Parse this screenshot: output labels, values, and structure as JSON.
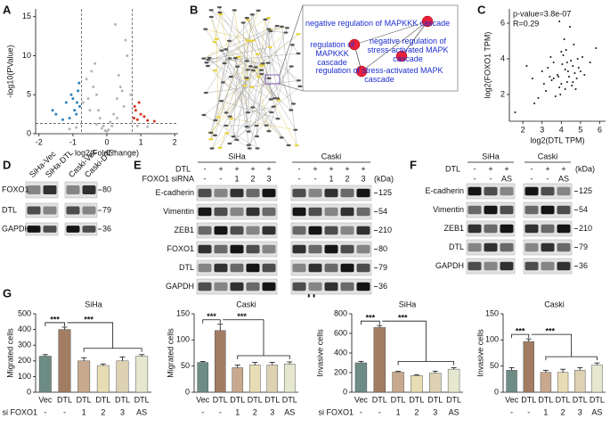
{
  "panel_labels": [
    "A",
    "B",
    "C",
    "D",
    "E",
    "F",
    "G",
    "H"
  ],
  "chart_data": [
    {
      "type": "scatter",
      "xlabel": "log2(FoldChange)",
      "ylabel": "-log10(PValue)",
      "xlim": [
        -2.1,
        2.1
      ],
      "ylim": [
        0,
        16
      ],
      "xticks": [
        -2,
        -1,
        0,
        1,
        2
      ],
      "yticks": [
        0,
        5,
        10,
        15
      ],
      "vlines": [
        -0.75,
        0.75
      ],
      "hline": 1.3,
      "series": [
        {
          "color": "#b5b5b5",
          "x": [
            -0.9,
            -0.7,
            -0.5,
            -0.4,
            -0.3,
            -0.2,
            -0.1,
            0,
            0.1,
            0.2,
            0.3,
            0.4,
            0.5,
            -0.6,
            0.6,
            -0.3,
            0.3,
            -0.45,
            0.45,
            -0.15,
            0.15,
            0.05,
            -0.05,
            0.7,
            0.9,
            0.25,
            -0.25,
            -1.1,
            1.2,
            -0.35,
            0.35,
            0.55,
            -0.55
          ],
          "values": [
            0.8,
            4,
            3,
            6,
            5,
            2,
            1,
            0.3,
            1.5,
            2.5,
            4.5,
            6,
            3.5,
            7,
            10,
            1.2,
            2,
            8,
            5.5,
            0.7,
            1,
            0.5,
            0.4,
            5,
            1,
            14,
            3,
            0.6,
            0.9,
            9,
            7.5,
            12,
            4.5
          ]
        },
        {
          "color": "#2c7fb8",
          "x": [
            -1.5,
            -1.2,
            -1.0,
            -0.95,
            -0.85,
            -0.8,
            -1.1,
            -0.82,
            -0.9,
            -1.3,
            -0.88,
            -1.6,
            -1.05
          ],
          "values": [
            2.5,
            4,
            4.5,
            3,
            5.5,
            3.5,
            2,
            6.5,
            2.5,
            1.8,
            4,
            3,
            5
          ]
        },
        {
          "color": "#d7301f",
          "x": [
            0.8,
            0.85,
            0.9,
            1.0,
            1.2,
            0.82,
            0.95,
            1.1,
            1.4
          ],
          "values": [
            2,
            3,
            1.8,
            2.5,
            1.7,
            3.5,
            4,
            2.2,
            1.6
          ]
        }
      ]
    },
    {
      "type": "scatter",
      "xlabel": "log2(DTL TPM)",
      "ylabel": "log2(FOXO1 TPM)",
      "annotations": [
        "p-value=3.8e-07",
        "R=0.29"
      ],
      "xlim": [
        1.3,
        6.3
      ],
      "ylim": [
        0.5,
        6.8
      ],
      "xticks": [
        2,
        3,
        4,
        5,
        6
      ],
      "yticks": [
        2,
        4,
        6
      ],
      "series": [
        {
          "color": "#111111",
          "x": [
            3.2,
            3.5,
            3.8,
            4.0,
            4.2,
            4.4,
            4.6,
            4.8,
            5.0,
            3.6,
            3.9,
            4.1,
            4.3,
            4.5,
            4.7,
            3.3,
            3.7,
            4.05,
            4.25,
            4.55,
            4.85,
            5.2,
            2.8,
            3.0,
            2.5,
            2.2,
            5.5,
            5.8,
            4.15,
            3.95,
            4.35,
            4.65,
            3.45,
            3.85,
            4.75,
            4.9,
            3.1,
            2.6,
            1.6,
            4.45,
            3.9,
            4.0,
            4.3,
            3.6,
            4.6,
            5.1,
            3.4,
            4.2
          ],
          "values": [
            2.2,
            2.8,
            3.1,
            2.6,
            3.4,
            3.0,
            3.6,
            2.9,
            3.3,
            3.8,
            2.4,
            4.2,
            2.7,
            3.9,
            3.2,
            3.5,
            1.9,
            3.7,
            4.5,
            2.5,
            4.0,
            3.1,
            1.8,
            3.3,
            2.9,
            3.6,
            3.8,
            4.6,
            5.1,
            2.0,
            3.3,
            4.8,
            4.1,
            3.0,
            2.3,
            3.5,
            2.6,
            1.5,
            1.0,
            5.8,
            6.1,
            4.4,
            3.8,
            2.9,
            2.7,
            4.1,
            3.0,
            2.3
          ]
        }
      ]
    },
    {
      "type": "bar",
      "title": "SiHa",
      "ylabel": "Migrated cells",
      "categories": [
        "Vec",
        "DTL",
        "DTL",
        "DTL",
        "DTL",
        "DTL"
      ],
      "sublabels": [
        "-",
        "-",
        "1",
        "2",
        "3",
        "AS"
      ],
      "sublabel_title": "si FOXO1",
      "values": [
        230,
        400,
        200,
        170,
        200,
        230
      ],
      "errors": [
        10,
        15,
        20,
        10,
        25,
        10
      ],
      "colors": [
        "#6e8c86",
        "#a27d63",
        "#c8a98e",
        "#e7dcb4",
        "#ddd3b2",
        "#e5e8cf"
      ],
      "ylim": [
        0,
        500
      ],
      "yticks": [
        0,
        100,
        200,
        300,
        400,
        500
      ],
      "annotations": [
        "***",
        "***"
      ]
    },
    {
      "type": "bar",
      "title": "Caski",
      "ylabel": "Migrated cells",
      "categories": [
        "Vec",
        "DTL",
        "DTL",
        "DTL",
        "DTL",
        "DTL"
      ],
      "sublabels": [
        "-",
        "-",
        "1",
        "2",
        "3",
        "AS"
      ],
      "values": [
        57,
        118,
        47,
        52,
        52,
        54
      ],
      "errors": [
        2,
        12,
        5,
        5,
        5,
        4
      ],
      "colors": [
        "#6e8c86",
        "#a27d63",
        "#c8a98e",
        "#e7dcb4",
        "#ddd3b2",
        "#e5e8cf"
      ],
      "ylim": [
        0,
        150
      ],
      "yticks": [
        0,
        50,
        100,
        150
      ],
      "annotations": [
        "***",
        "***"
      ]
    },
    {
      "type": "bar",
      "title": "SiHa",
      "ylabel": "Invasive cells",
      "categories": [
        "Vec",
        "DTL",
        "DTL",
        "DTL",
        "DTL",
        "DTL"
      ],
      "sublabels": [
        "-",
        "-",
        "1",
        "2",
        "3",
        "AS"
      ],
      "sublabel_title": "si FOXO1",
      "values": [
        300,
        660,
        205,
        170,
        195,
        235
      ],
      "errors": [
        15,
        20,
        8,
        8,
        20,
        15
      ],
      "colors": [
        "#6e8c86",
        "#a27d63",
        "#c8a98e",
        "#e7dcb4",
        "#ddd3b2",
        "#e5e8cf"
      ],
      "ylim": [
        0,
        800
      ],
      "yticks": [
        0,
        200,
        400,
        600,
        800
      ],
      "annotations": [
        "***",
        "***"
      ]
    },
    {
      "type": "bar",
      "title": "Caski",
      "ylabel": "Invasive cells",
      "categories": [
        "Vec",
        "DTL",
        "DTL",
        "DTL",
        "DTL",
        "DTL"
      ],
      "sublabels": [
        "-",
        "-",
        "1",
        "2",
        "3",
        "AS"
      ],
      "values": [
        42,
        97,
        38,
        38,
        42,
        52
      ],
      "errors": [
        5,
        5,
        4,
        6,
        5,
        4
      ],
      "colors": [
        "#6e8c86",
        "#a27d63",
        "#c8a98e",
        "#e7dcb4",
        "#ddd3b2",
        "#e5e8cf"
      ],
      "ylim": [
        0,
        150
      ],
      "yticks": [
        0,
        50,
        100,
        150
      ],
      "annotations": [
        "***",
        "***"
      ]
    }
  ],
  "network": {
    "terms": [
      "negative regulation of MAPKKK cascade",
      "regulation of MAPKKK cascade",
      "negative regulation of stress-activated MAPK cascade",
      "regulation of stress-activated MAPK cascade"
    ]
  },
  "blots": [
    {
      "columns": [
        "SiHa-Vec",
        "SiHa-DTL",
        "Caski-Vec",
        "Caski-DTL"
      ],
      "rows": [
        {
          "name": "FOXO1",
          "kda": 80
        },
        {
          "name": "DTL",
          "kda": 79
        },
        {
          "name": "GAPDH",
          "kda": 36
        }
      ]
    },
    {
      "groups": [
        "SiHa",
        "Caski"
      ],
      "conditions": [
        {
          "label": "DTL",
          "values": [
            "-",
            "+",
            "+",
            "+",
            "+"
          ]
        },
        {
          "label": "FOXO1 siRNA",
          "values": [
            "-",
            "-",
            "1",
            "2",
            "3"
          ]
        }
      ],
      "unit": "(kDa)",
      "rows": [
        {
          "name": "E-cadherin",
          "kda": 125
        },
        {
          "name": "Vimentin",
          "kda": 54
        },
        {
          "name": "ZEB1",
          "kda": 210
        },
        {
          "name": "FOXO1",
          "kda": 80
        },
        {
          "name": "DTL",
          "kda": 79
        },
        {
          "name": "GAPDH",
          "kda": 36
        }
      ]
    },
    {
      "groups": [
        "SiHa",
        "Caski"
      ],
      "conditions": [
        {
          "label": "DTL",
          "values": [
            "-",
            "+",
            "+"
          ]
        },
        {
          "label": null,
          "values": [
            "-",
            "-",
            "AS"
          ]
        }
      ],
      "unit": "(kDa)",
      "rows": [
        {
          "name": "E-cadherin",
          "kda": 125
        },
        {
          "name": "Vimentin",
          "kda": 54
        },
        {
          "name": "ZEB1",
          "kda": 210
        },
        {
          "name": "DTL",
          "kda": 79
        },
        {
          "name": "GAPDH",
          "kda": 36
        }
      ]
    }
  ]
}
